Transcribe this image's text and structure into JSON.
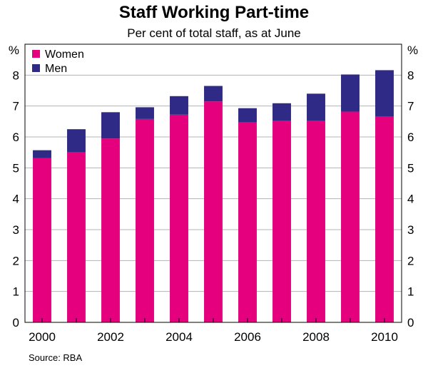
{
  "chart_data": {
    "type": "bar",
    "stacked": true,
    "title": "Staff Working Part-time",
    "subtitle": "Per cent of total staff, as at June",
    "unit_left": "%",
    "unit_right": "%",
    "source": "Source: RBA",
    "categories": [
      "2000",
      "2001",
      "2002",
      "2003",
      "2004",
      "2005",
      "2006",
      "2007",
      "2008",
      "2009",
      "2010"
    ],
    "x_tick_labels": [
      "2000",
      "2002",
      "2004",
      "2006",
      "2008",
      "2010"
    ],
    "y_ticks": [
      "0",
      "1",
      "2",
      "3",
      "4",
      "5",
      "6",
      "7",
      "8"
    ],
    "ylim": [
      0,
      9
    ],
    "legend_position": "top-left",
    "series": [
      {
        "name": "Women",
        "color": "#e5007e",
        "values": [
          5.32,
          5.5,
          5.95,
          6.58,
          6.72,
          7.15,
          6.47,
          6.53,
          6.53,
          6.82,
          6.66
        ]
      },
      {
        "name": "Men",
        "color": "#2e2a85",
        "values": [
          0.25,
          0.75,
          0.85,
          0.38,
          0.6,
          0.5,
          0.46,
          0.56,
          0.87,
          1.2,
          1.5
        ]
      }
    ]
  }
}
